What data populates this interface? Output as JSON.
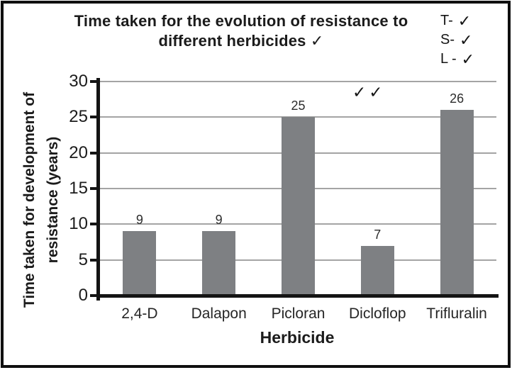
{
  "chart_data": {
    "type": "bar",
    "title": "Time taken for the evolution of resistance to different herbicides",
    "title_lines": [
      "Time taken for the evolution of resistance to",
      "different herbicides ✓"
    ],
    "categories": [
      "2,4-D",
      "Dalapon",
      "Picloran",
      "Dicloflop",
      "Trifluralin"
    ],
    "values": [
      9,
      9,
      25,
      7,
      26
    ],
    "data_labels": [
      "9",
      "9",
      "25",
      "7",
      "26"
    ],
    "xlabel": "Herbicide",
    "ylabel": "Time taken for development of resistance (years)",
    "ylabel_lines": [
      "Time taken for development of",
      "resistance (years)"
    ],
    "ylim": [
      0,
      30
    ],
    "ytick_interval": 5,
    "grid": true,
    "legend": "none",
    "colors": {
      "bar": "#7e8083",
      "gridline": "#a4a4a4",
      "axis": "#141414",
      "frame": "#0f0f0f",
      "text": "#1c1c1c"
    }
  },
  "annotations": {
    "checklist": [
      {
        "label": "T-",
        "mark": "✓"
      },
      {
        "label": "S-",
        "mark": "✓"
      },
      {
        "label": "L -",
        "mark": "✓"
      }
    ],
    "double_check": "✓✓"
  }
}
